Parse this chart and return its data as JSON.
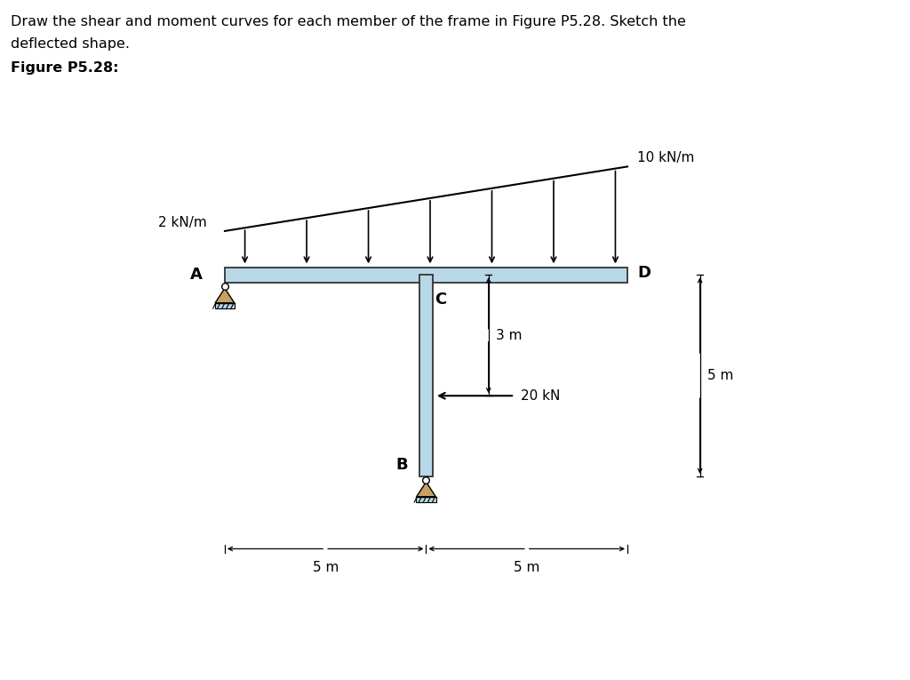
{
  "title_line1": "Draw the shear and moment curves for each member of the frame in Figure P5.28. Sketch the",
  "title_line2": "deflected shape.",
  "figure_label": "Figure P5.28:",
  "bg_color": "#ffffff",
  "beam_color": "#b8d8e8",
  "beam_edge_color": "#333333",
  "col_color": "#b8d8e8",
  "col_edge_color": "#333333",
  "support_fill": "#c8a060",
  "ground_fill": "#b8d8e8",
  "text_color": "#000000",
  "dist_load_left_label": "2 kN/m",
  "dist_load_right_label": "10 kN/m",
  "point_load_label": "20 kN",
  "dim_5m_label": "5 m",
  "dim_5m_right_label": "5 m",
  "dim_5m_vert_label": "5 m",
  "dim_3m_label": "3 m",
  "A_label": "A",
  "B_label": "B",
  "C_label": "C",
  "D_label": "D"
}
